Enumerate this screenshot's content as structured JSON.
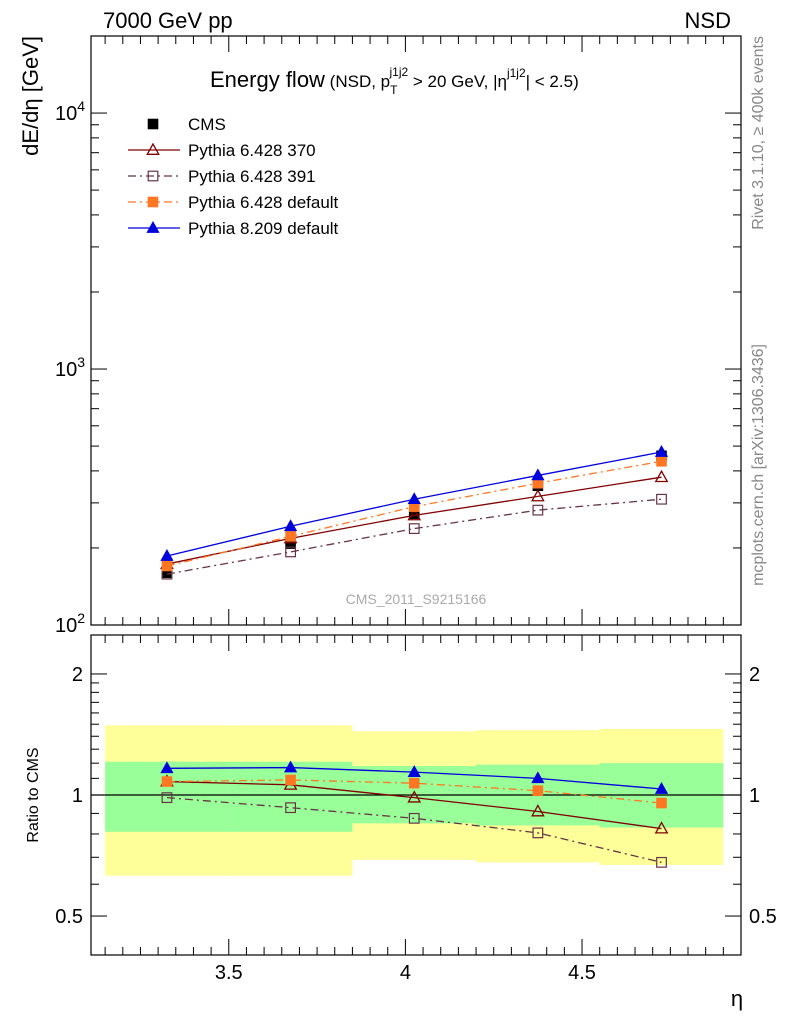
{
  "header": {
    "left": "7000 GeV pp",
    "right": "NSD"
  },
  "side_labels": {
    "rivet": "Rivet 3.1.10, ≥ 400k events",
    "mcplots": "mcplots.cern.ch [arXiv:1306.3436]"
  },
  "watermark": "CMS_2011_S9215166",
  "chart_data": [
    {
      "type": "line",
      "panel": "main",
      "title": "Energy flow",
      "subtitle": {
        "prefix": "(NSD, p",
        "sub1": "T",
        "sup1": "j1j2",
        "mid": " > 20 GeV, |η",
        "sup2": "j1j2",
        "suffix": "| < 2.5)"
      },
      "xlabel": "",
      "ylabel": "dE/dη [GeV]",
      "yscale": "log",
      "xlim": [
        3.11,
        4.95
      ],
      "ylim": [
        100,
        20000
      ],
      "y_tick_labels": [
        {
          "base": "10",
          "exp": "2",
          "value": 100
        },
        {
          "base": "10",
          "exp": "3",
          "value": 1000
        },
        {
          "base": "10",
          "exp": "4",
          "value": 10000
        }
      ],
      "x": [
        3.325,
        3.675,
        4.025,
        4.375,
        4.725
      ],
      "series": [
        {
          "name": "CMS",
          "values": [
            160,
            208,
            272,
            350,
            458
          ],
          "color": "#000000",
          "marker": "square-filled",
          "line": "none"
        },
        {
          "name": "Pythia 6.428 370",
          "values": [
            173,
            218,
            268,
            318,
            378
          ],
          "color": "#800000",
          "marker": "triangle-open",
          "line": "solid"
        },
        {
          "name": "Pythia 6.428 391",
          "values": [
            158,
            193,
            238,
            281,
            310
          ],
          "color": "#663344",
          "marker": "square-open",
          "line": "dashdot"
        },
        {
          "name": "Pythia 6.428 default",
          "values": [
            170,
            222,
            290,
            358,
            436
          ],
          "color": "#ff7722",
          "marker": "square-filled",
          "line": "dashdot"
        },
        {
          "name": "Pythia 8.209 default",
          "values": [
            186,
            243,
            310,
            384,
            474
          ],
          "color": "#0000dd",
          "marker": "triangle-filled",
          "line": "solid"
        }
      ]
    },
    {
      "type": "line",
      "panel": "ratio",
      "ylabel": "Ratio to CMS",
      "xlabel": "η",
      "yscale": "log",
      "xlim": [
        3.11,
        4.95
      ],
      "ylim": [
        0.4,
        2.5
      ],
      "y_ticks": [
        0.5,
        1,
        2
      ],
      "y_tick_labels": [
        "0.5",
        "1",
        "2"
      ],
      "x_ticks": [
        3.5,
        4,
        4.5
      ],
      "x_tick_labels": [
        "3.5",
        "4",
        "4.5"
      ],
      "bins": [
        {
          "x_lo": 3.15,
          "x_hi": 3.5,
          "inner": [
            0.81,
            1.21
          ],
          "outer": [
            0.63,
            1.49
          ]
        },
        {
          "x_lo": 3.5,
          "x_hi": 3.85,
          "inner": [
            0.81,
            1.21
          ],
          "outer": [
            0.63,
            1.49
          ]
        },
        {
          "x_lo": 3.85,
          "x_hi": 4.2,
          "inner": [
            0.85,
            1.18
          ],
          "outer": [
            0.69,
            1.44
          ]
        },
        {
          "x_lo": 4.2,
          "x_hi": 4.55,
          "inner": [
            0.84,
            1.19
          ],
          "outer": [
            0.68,
            1.45
          ]
        },
        {
          "x_lo": 4.55,
          "x_hi": 4.9,
          "inner": [
            0.83,
            1.2
          ],
          "outer": [
            0.67,
            1.46
          ]
        }
      ],
      "x": [
        3.325,
        3.675,
        4.025,
        4.375,
        4.725
      ],
      "reference": {
        "name": "CMS",
        "value": 1,
        "color": "#000000"
      },
      "series": [
        {
          "name": "Pythia 6.428 370",
          "values": [
            1.08,
            1.06,
            0.985,
            0.91,
            0.825
          ],
          "color": "#800000",
          "marker": "triangle-open",
          "line": "solid"
        },
        {
          "name": "Pythia 6.428 391",
          "values": [
            0.985,
            0.93,
            0.875,
            0.805,
            0.68
          ],
          "color": "#663344",
          "marker": "square-open",
          "line": "dashdot"
        },
        {
          "name": "Pythia 6.428 default",
          "values": [
            1.08,
            1.09,
            1.07,
            1.025,
            0.955
          ],
          "color": "#ff7722",
          "marker": "square-filled",
          "line": "dashdot"
        },
        {
          "name": "Pythia 8.209 default",
          "values": [
            1.165,
            1.17,
            1.14,
            1.1,
            1.035
          ],
          "color": "#0000dd",
          "marker": "triangle-filled",
          "line": "solid"
        }
      ]
    }
  ],
  "colors": {
    "band_inner": "#99ff99",
    "band_outer": "#ffff99"
  }
}
